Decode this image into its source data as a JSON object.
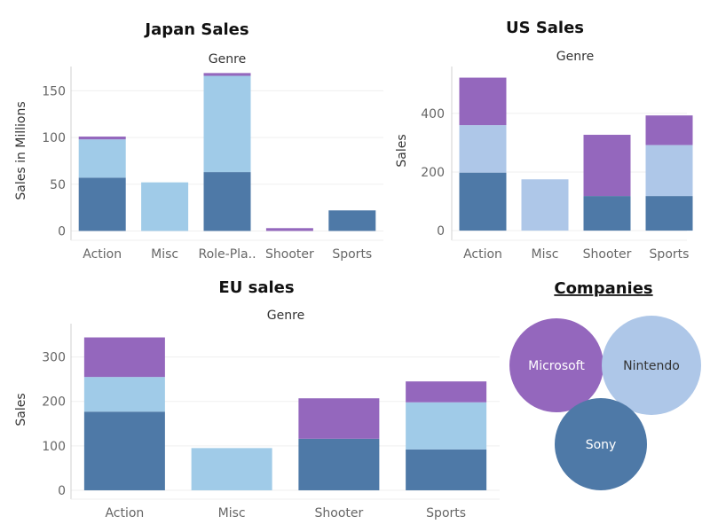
{
  "colors": {
    "Sony": "#4e79a7",
    "Nintendo": "#a0cbe8",
    "Nintendo_us": "#aec7e8",
    "Microsoft": "#9467bd",
    "grid": "#efefef",
    "axis": "#d0d0d0"
  },
  "legend": {
    "title": "Companies",
    "items": [
      {
        "name": "Microsoft",
        "color": "#9467bd",
        "text_color": "#ffffff"
      },
      {
        "name": "Nintendo",
        "color": "#aec7e8",
        "text_color": "#333333"
      },
      {
        "name": "Sony",
        "color": "#4e79a7",
        "text_color": "#ffffff"
      }
    ]
  },
  "chart_data": [
    {
      "type": "bar",
      "stacked": true,
      "title": "Japan Sales",
      "subtitle": "Genre",
      "ylabel": "Sales in Millions",
      "categories": [
        "Action",
        "Misc",
        "Role-Pla..",
        "Shooter",
        "Sports"
      ],
      "ylim": [
        -10,
        176
      ],
      "yticks": [
        0,
        50,
        100,
        150
      ],
      "grid": true,
      "series": [
        {
          "name": "Sony",
          "color": "#4e79a7",
          "values": [
            57,
            0,
            63,
            0,
            22
          ]
        },
        {
          "name": "Nintendo",
          "color": "#a0cbe8",
          "values": [
            41,
            52,
            103,
            0,
            0
          ]
        },
        {
          "name": "Microsoft",
          "color": "#9467bd",
          "values": [
            3,
            0,
            3,
            3,
            0
          ]
        }
      ]
    },
    {
      "type": "bar",
      "stacked": true,
      "title": "US Sales",
      "subtitle": "Genre",
      "ylabel": "Sales",
      "categories": [
        "Action",
        "Misc",
        "Shooter",
        "Sports"
      ],
      "ylim": [
        -33,
        560
      ],
      "yticks": [
        0,
        200,
        400
      ],
      "grid": true,
      "series": [
        {
          "name": "Sony",
          "color": "#4e79a7",
          "values": [
            198,
            0,
            118,
            118
          ]
        },
        {
          "name": "Nintendo",
          "color": "#aec7e8",
          "values": [
            162,
            175,
            0,
            174
          ]
        },
        {
          "name": "Microsoft",
          "color": "#9467bd",
          "values": [
            162,
            0,
            209,
            101
          ]
        }
      ]
    },
    {
      "type": "bar",
      "stacked": true,
      "title": "EU sales",
      "subtitle": "Genre",
      "ylabel": "Sales",
      "categories": [
        "Action",
        "Misc",
        "Shooter",
        "Sports"
      ],
      "ylim": [
        -20,
        375
      ],
      "yticks": [
        0,
        100,
        200,
        300
      ],
      "grid": true,
      "series": [
        {
          "name": "Sony",
          "color": "#4e79a7",
          "values": [
            177,
            0,
            116,
            92
          ]
        },
        {
          "name": "Nintendo",
          "color": "#a0cbe8",
          "values": [
            78,
            95,
            0,
            106
          ]
        },
        {
          "name": "Microsoft",
          "color": "#9467bd",
          "values": [
            89,
            0,
            91,
            47
          ]
        }
      ]
    }
  ]
}
